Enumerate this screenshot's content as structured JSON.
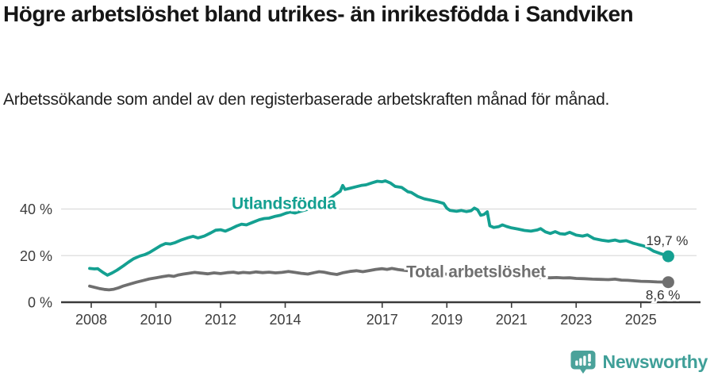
{
  "title": "Högre arbetslöshet bland utrikes- än inrikesfödda i Sandviken",
  "subtitle": "Arbetssökande som andel av den registerbaserade arbetskraften månad för månad.",
  "footer": {
    "brand": "Newsworthy",
    "logo_icon": "newsworthy-pin-barchart-icon"
  },
  "colors": {
    "accent_teal": "#14a091",
    "line_gray": "#6f6f6f",
    "grid": "#dcdcdc",
    "axis": "#3a3a3a",
    "axis_text": "#3d3d3d",
    "annotation_text": "#333333",
    "title_text": "#161616",
    "logo_teal": "#4aa29a",
    "brand_text": "#3f9f98",
    "background": "#ffffff"
  },
  "chart_data": {
    "type": "line",
    "title": "Högre arbetslöshet bland utrikes- än inrikesfödda i Sandviken",
    "subtitle": "Arbetssökande som andel av den registerbaserade arbetskraften månad för månad.",
    "xlabel": "",
    "ylabel": "",
    "grid": "horizontal-only",
    "legend_position": "inline-labels",
    "xlim": [
      2007.7,
      2026.5
    ],
    "ylim": [
      0,
      55
    ],
    "x_ticks": [
      {
        "value": 2008,
        "label": "2008"
      },
      {
        "value": 2010,
        "label": "2010"
      },
      {
        "value": 2012,
        "label": "2012"
      },
      {
        "value": 2014,
        "label": "2014"
      },
      {
        "value": 2017,
        "label": "2017"
      },
      {
        "value": 2019,
        "label": "2019"
      },
      {
        "value": 2021,
        "label": "2021"
      },
      {
        "value": 2023,
        "label": "2023"
      },
      {
        "value": 2025,
        "label": "2025"
      }
    ],
    "y_ticks": [
      {
        "value": 0,
        "label": "0 %"
      },
      {
        "value": 20,
        "label": "20 %"
      },
      {
        "value": 40,
        "label": "40 %"
      }
    ],
    "series": [
      {
        "name": "Utlandsfödda",
        "color": "#14a091",
        "label_pos": {
          "year": 2013.96,
          "value": 40.0
        },
        "end_label": "19,7 %",
        "x": [
          2007.95,
          2008.1,
          2008.2,
          2008.35,
          2008.5,
          2008.65,
          2008.8,
          2009.0,
          2009.15,
          2009.3,
          2009.5,
          2009.65,
          2009.8,
          2010.0,
          2010.15,
          2010.3,
          2010.45,
          2010.6,
          2010.8,
          2011.0,
          2011.15,
          2011.3,
          2011.5,
          2011.7,
          2011.85,
          2012.0,
          2012.15,
          2012.3,
          2012.5,
          2012.65,
          2012.8,
          2013.0,
          2013.2,
          2013.35,
          2013.5,
          2013.7,
          2013.85,
          2014.0,
          2014.15,
          2014.3,
          2014.5,
          2014.7,
          2014.85,
          2015.0,
          2015.2,
          2015.4,
          2015.55,
          2015.7,
          2015.78,
          2015.85,
          2016.0,
          2016.2,
          2016.35,
          2016.5,
          2016.7,
          2016.85,
          2017.0,
          2017.1,
          2017.25,
          2017.4,
          2017.6,
          2017.8,
          2017.9,
          2018.1,
          2018.3,
          2018.5,
          2018.7,
          2018.9,
          2019.0,
          2019.1,
          2019.3,
          2019.45,
          2019.6,
          2019.75,
          2019.85,
          2019.95,
          2020.05,
          2020.15,
          2020.25,
          2020.33,
          2020.45,
          2020.6,
          2020.72,
          2020.85,
          2021.0,
          2021.2,
          2021.4,
          2021.6,
          2021.8,
          2021.9,
          2022.05,
          2022.2,
          2022.35,
          2022.5,
          2022.65,
          2022.8,
          2023.0,
          2023.2,
          2023.35,
          2023.55,
          2023.8,
          2024.0,
          2024.2,
          2024.35,
          2024.55,
          2024.75,
          2024.9,
          2025.05,
          2025.2,
          2025.4,
          2025.6,
          2025.72,
          2025.85
        ],
        "values": [
          14.5,
          14.3,
          14.4,
          12.9,
          11.6,
          12.6,
          13.8,
          15.7,
          17.2,
          18.6,
          19.8,
          20.4,
          21.3,
          23.0,
          24.3,
          25.2,
          25.0,
          25.6,
          26.8,
          27.7,
          28.3,
          27.6,
          28.4,
          29.8,
          30.9,
          31.1,
          30.5,
          31.4,
          32.7,
          33.5,
          33.2,
          34.3,
          35.4,
          35.9,
          36.1,
          36.9,
          37.3,
          38.1,
          38.7,
          38.3,
          39.1,
          39.9,
          40.4,
          41.3,
          42.9,
          44.7,
          46.2,
          47.6,
          50.1,
          48.4,
          48.9,
          49.6,
          50.1,
          50.4,
          51.3,
          51.9,
          51.7,
          52.1,
          51.2,
          49.7,
          49.3,
          47.4,
          47.1,
          45.4,
          44.4,
          43.8,
          43.2,
          42.4,
          40.3,
          39.4,
          39.0,
          39.4,
          38.9,
          39.3,
          40.4,
          39.7,
          37.3,
          37.7,
          38.8,
          32.8,
          32.1,
          32.4,
          33.2,
          32.5,
          31.9,
          31.4,
          30.8,
          30.5,
          31.0,
          31.6,
          30.2,
          29.5,
          30.3,
          29.4,
          29.2,
          30.0,
          28.8,
          28.4,
          28.9,
          27.3,
          26.6,
          26.2,
          26.7,
          26.1,
          26.4,
          25.4,
          24.8,
          24.3,
          23.6,
          21.9,
          20.9,
          20.4,
          19.7
        ]
      },
      {
        "name": "Total arbetslöshet",
        "color": "#6f6f6f",
        "label_pos": {
          "year": 2019.9,
          "value": 10.7
        },
        "end_label": "8,6 %",
        "x": [
          2007.95,
          2008.1,
          2008.25,
          2008.4,
          2008.55,
          2008.7,
          2008.85,
          2009.0,
          2009.2,
          2009.4,
          2009.6,
          2009.8,
          2010.0,
          2010.2,
          2010.4,
          2010.55,
          2010.7,
          2010.85,
          2011.0,
          2011.2,
          2011.4,
          2011.6,
          2011.8,
          2012.0,
          2012.2,
          2012.4,
          2012.55,
          2012.7,
          2012.9,
          2013.1,
          2013.3,
          2013.5,
          2013.7,
          2013.9,
          2014.1,
          2014.3,
          2014.5,
          2014.7,
          2014.9,
          2015.05,
          2015.2,
          2015.4,
          2015.6,
          2015.8,
          2016.0,
          2016.2,
          2016.4,
          2016.6,
          2016.8,
          2017.0,
          2017.15,
          2017.3,
          2017.5,
          2017.7,
          2017.9,
          2018.2,
          2018.5,
          2018.8,
          2019.1,
          2019.4,
          2019.7,
          2020.0,
          2020.3,
          2020.55,
          2020.8,
          2021.0,
          2021.3,
          2021.6,
          2021.9,
          2022.2,
          2022.4,
          2022.6,
          2022.8,
          2023.0,
          2023.25,
          2023.5,
          2023.75,
          2024.0,
          2024.2,
          2024.4,
          2024.6,
          2024.8,
          2025.0,
          2025.25,
          2025.5,
          2025.85
        ],
        "values": [
          6.9,
          6.4,
          5.9,
          5.5,
          5.3,
          5.6,
          6.2,
          7.0,
          7.8,
          8.6,
          9.3,
          10.0,
          10.5,
          11.0,
          11.4,
          11.1,
          11.7,
          12.1,
          12.4,
          12.8,
          12.5,
          12.2,
          12.6,
          12.3,
          12.7,
          12.9,
          12.5,
          12.8,
          12.6,
          13.0,
          12.7,
          12.9,
          12.6,
          12.8,
          13.2,
          12.8,
          12.4,
          12.1,
          12.7,
          13.1,
          12.9,
          12.3,
          11.9,
          12.7,
          13.2,
          13.5,
          13.1,
          13.6,
          14.1,
          14.4,
          14.1,
          14.5,
          14.0,
          13.7,
          13.4,
          13.0,
          12.7,
          12.3,
          11.9,
          11.7,
          11.5,
          11.3,
          11.9,
          11.6,
          11.4,
          11.2,
          10.9,
          10.7,
          10.6,
          10.5,
          10.6,
          10.4,
          10.5,
          10.2,
          10.1,
          9.9,
          9.8,
          9.7,
          9.9,
          9.5,
          9.4,
          9.2,
          9.0,
          8.9,
          8.7,
          8.6
        ]
      }
    ]
  }
}
